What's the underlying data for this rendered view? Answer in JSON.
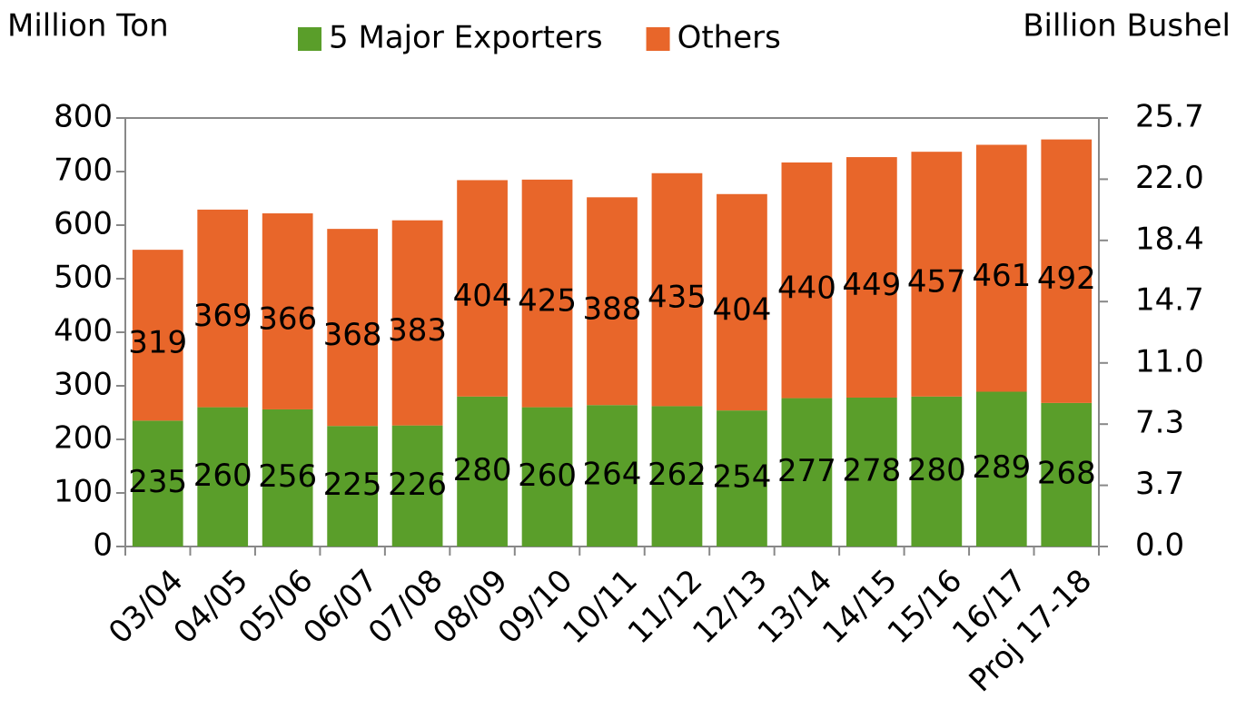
{
  "chart_data": {
    "type": "bar",
    "stacked": true,
    "y_label": "Million Ton",
    "y2_label": "Billion Bushel",
    "categories": [
      "03/04",
      "04/05",
      "05/06",
      "06/07",
      "07/08",
      "08/09",
      "09/10",
      "10/11",
      "11/12",
      "12/13",
      "13/14",
      "14/15",
      "15/16",
      "16/17",
      "Proj 17-18"
    ],
    "series": [
      {
        "name": "5 Major Exporters",
        "color": "#5a9e2a",
        "values": [
          235,
          260,
          256,
          225,
          226,
          280,
          260,
          264,
          262,
          254,
          277,
          278,
          280,
          289,
          268
        ]
      },
      {
        "name": "Others",
        "color": "#e8662a",
        "values": [
          319,
          369,
          366,
          368,
          383,
          404,
          425,
          388,
          435,
          404,
          440,
          449,
          457,
          461,
          492
        ]
      }
    ],
    "ylim": [
      0,
      800
    ],
    "yticks": [
      0,
      100,
      200,
      300,
      400,
      500,
      600,
      700,
      800
    ],
    "y2lim": [
      0,
      25.7
    ],
    "y2ticks": [
      {
        "value": 0,
        "label": "0.0"
      },
      {
        "value": 3.67,
        "label": "3.7"
      },
      {
        "value": 7.34,
        "label": "7.3"
      },
      {
        "value": 11.01,
        "label": "11.0"
      },
      {
        "value": 14.69,
        "label": "14.7"
      },
      {
        "value": 18.36,
        "label": "18.4"
      },
      {
        "value": 22.03,
        "label": "22.0"
      },
      {
        "value": 25.7,
        "label": "25.7"
      }
    ],
    "grid": false,
    "legend": "top"
  }
}
